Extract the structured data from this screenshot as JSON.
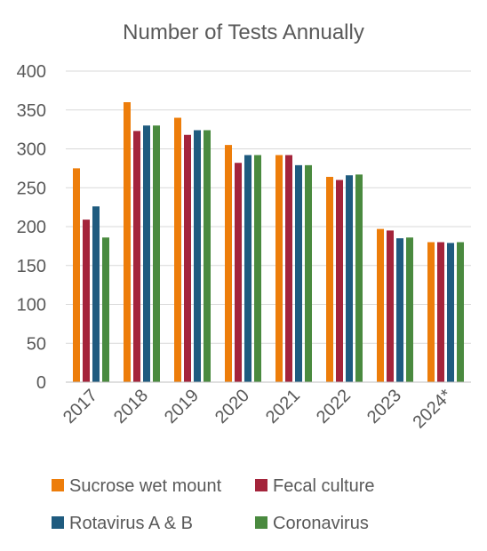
{
  "chart_data": {
    "type": "bar",
    "title": "Number of Tests Annually",
    "xlabel": "",
    "ylabel": "",
    "categories": [
      "2017",
      "2018",
      "2019",
      "2020",
      "2021",
      "2022",
      "2023",
      "2024*"
    ],
    "ylim": [
      0,
      400
    ],
    "yticks": [
      0,
      50,
      100,
      150,
      200,
      250,
      300,
      350,
      400
    ],
    "grid": true,
    "legend_position": "bottom",
    "series": [
      {
        "name": "Sucrose wet mount",
        "color": "#ED7D0A",
        "values": [
          275,
          360,
          340,
          305,
          292,
          264,
          197,
          180
        ]
      },
      {
        "name": "Fecal culture",
        "color": "#A4243B",
        "values": [
          209,
          323,
          318,
          282,
          292,
          260,
          195,
          180
        ]
      },
      {
        "name": "Rotavirus A & B",
        "color": "#1F5B7F",
        "values": [
          226,
          330,
          324,
          292,
          279,
          266,
          185,
          179
        ]
      },
      {
        "name": "Coronavirus",
        "color": "#4A8A3F",
        "values": [
          186,
          330,
          324,
          292,
          279,
          267,
          186,
          180
        ]
      }
    ]
  }
}
